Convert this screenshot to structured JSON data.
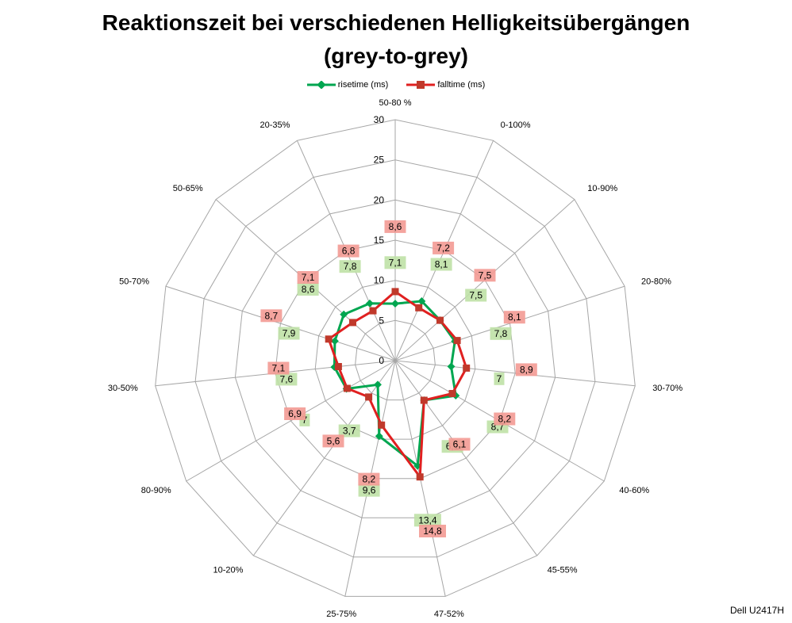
{
  "chart_data": {
    "type": "radar",
    "title": "Reaktionszeit bei verschiedenen Helligkeitsübergängen",
    "subtitle": "(grey-to-grey)",
    "categories": [
      "50-80 %",
      "0-100%",
      "10-90%",
      "20-80%",
      "30-70%",
      "40-60%",
      "45-55%",
      "47-52%",
      "25-75%",
      "10-20%",
      "80-90%",
      "30-50%",
      "50-70%",
      "50-65%",
      "20-35%"
    ],
    "radial_ticks": [
      "0",
      "5",
      "10",
      "15",
      "20",
      "25",
      "30"
    ],
    "rmax": 30,
    "rstep": 5,
    "series": [
      {
        "name": "risetime (ms)",
        "color": "#00a650",
        "label_bg": "#bfe1a6",
        "values": [
          7.1,
          8.1,
          7.5,
          7.8,
          7.0,
          8.7,
          6.1,
          13.4,
          9.6,
          3.7,
          7.0,
          7.6,
          7.9,
          8.6,
          7.8
        ],
        "labels": [
          "7,1",
          "8,1",
          "7,5",
          "7,8",
          "7",
          "8,7",
          "6,1",
          "13,4",
          "9,6",
          "3,7",
          "7",
          "7,6",
          "7,9",
          "8,6",
          "7,8"
        ]
      },
      {
        "name": "falltime (ms)",
        "color": "#e02020",
        "label_bg": "#f39a94",
        "values": [
          8.6,
          7.2,
          7.5,
          8.1,
          8.9,
          8.2,
          6.1,
          14.8,
          8.2,
          5.6,
          6.9,
          7.1,
          8.7,
          7.1,
          6.8
        ],
        "labels": [
          "8,6",
          "7,2",
          "7,5",
          "8,1",
          "8,9",
          "8,2",
          "6,1",
          "14,8",
          "8,2",
          "5,6",
          "6,9",
          "7,1",
          "8,7",
          "7,1",
          "6,8"
        ]
      }
    ],
    "legend_position": "top",
    "grid": true
  },
  "credit": "Dell U2417H"
}
